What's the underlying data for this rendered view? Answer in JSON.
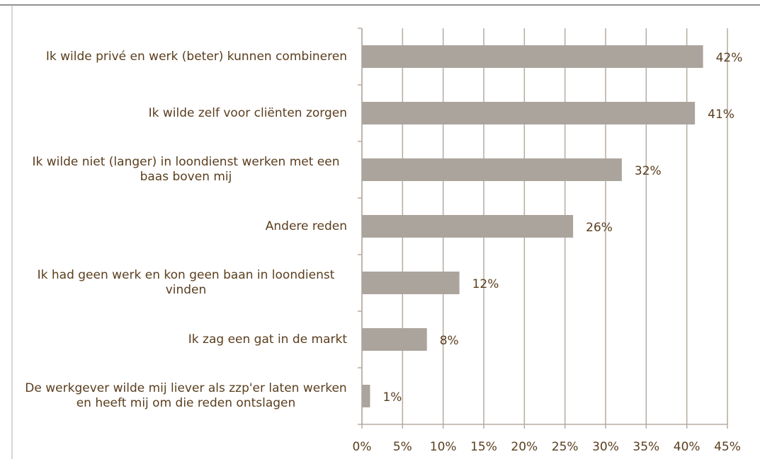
{
  "chart_data": {
    "type": "hbar",
    "categories": [
      "Ik wilde privé en werk (beter) kunnen combineren",
      "Ik wilde zelf voor cliënten zorgen",
      "Ik wilde niet (langer) in loondienst werken met een baas boven mij",
      "Andere reden",
      "Ik had geen werk en kon geen baan in loondienst vinden",
      "Ik zag een gat in de markt",
      "De werkgever wilde mij liever als zzp'er laten werken en heeft mij om die reden ontslagen"
    ],
    "values": [
      42,
      41,
      32,
      26,
      12,
      8,
      1
    ],
    "value_labels": [
      "42%",
      "41%",
      "32%",
      "26%",
      "12%",
      "8%",
      "1%"
    ],
    "color": "#aaa49d",
    "xlim": [
      0,
      45
    ],
    "xticks": [
      {
        "value": 0,
        "label": "0%"
      },
      {
        "value": 5,
        "label": "5%"
      },
      {
        "value": 10,
        "label": "10%"
      },
      {
        "value": 15,
        "label": "15%"
      },
      {
        "value": 20,
        "label": "20%"
      },
      {
        "value": 25,
        "label": "25%"
      },
      {
        "value": 30,
        "label": "30%"
      },
      {
        "value": 35,
        "label": "35%"
      },
      {
        "value": 40,
        "label": "40%"
      },
      {
        "value": 45,
        "label": "45%"
      }
    ],
    "grid": true
  }
}
